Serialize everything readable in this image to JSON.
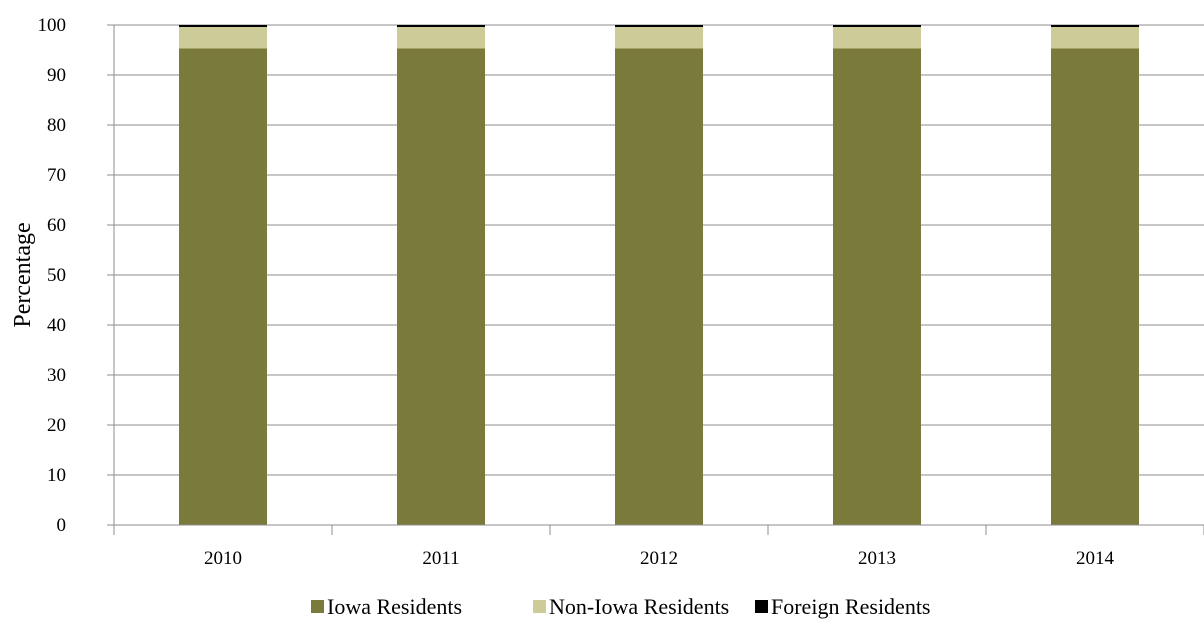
{
  "chart_data": {
    "type": "bar",
    "stacked": true,
    "categories": [
      "2010",
      "2011",
      "2012",
      "2013",
      "2014"
    ],
    "series": [
      {
        "name": "Iowa Residents",
        "values": [
          95.3,
          95.3,
          95.3,
          95.3,
          95.3
        ],
        "color": "#7A7A3A"
      },
      {
        "name": "Non-Iowa Residents",
        "values": [
          4.3,
          4.3,
          4.3,
          4.3,
          4.3
        ],
        "color": "#CDCB98"
      },
      {
        "name": "Foreign Residents",
        "values": [
          0.4,
          0.4,
          0.4,
          0.4,
          0.4
        ],
        "color": "#000000"
      }
    ],
    "title": "",
    "xlabel": "",
    "ylabel": "Percentage",
    "ylim": [
      0,
      100
    ],
    "yticks": [
      0,
      10,
      20,
      30,
      40,
      50,
      60,
      70,
      80,
      90,
      100
    ],
    "grid": true,
    "legend_position": "bottom"
  }
}
